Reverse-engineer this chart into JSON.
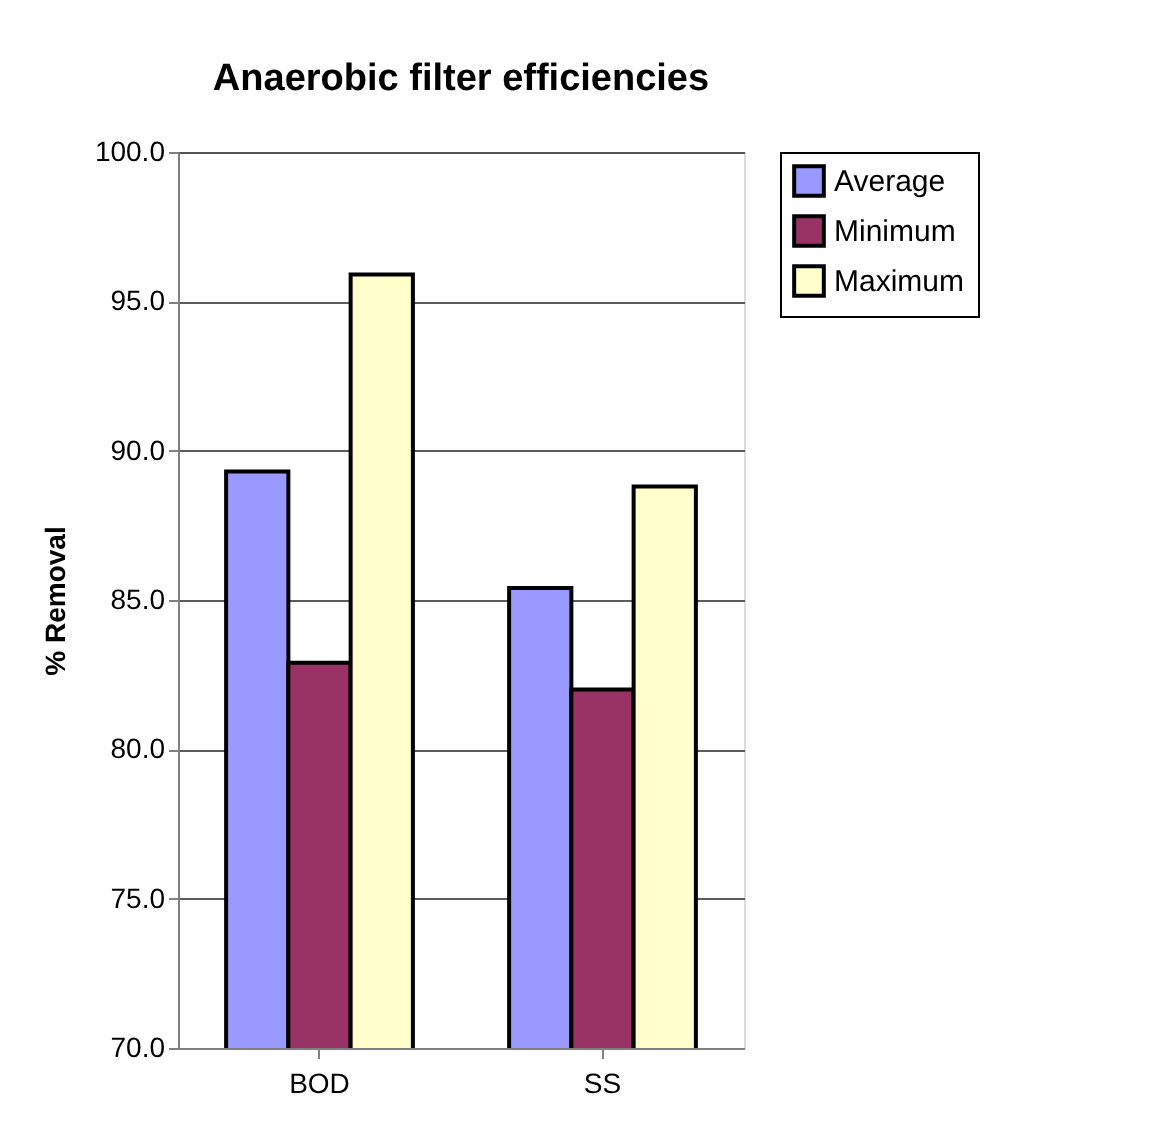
{
  "chart_data": {
    "type": "bar",
    "title": "Anaerobic filter efficiencies",
    "ylabel": "% Removal",
    "categories": [
      "BOD",
      "SS"
    ],
    "series": [
      {
        "name": "Average",
        "color": "#9999ff",
        "values": [
          89.3,
          85.4
        ]
      },
      {
        "name": "Minimum",
        "color": "#993366",
        "values": [
          82.9,
          82.0
        ]
      },
      {
        "name": "Maximum",
        "color": "#ffffcc",
        "values": [
          95.9,
          88.8
        ]
      }
    ],
    "ylim": [
      70,
      100
    ],
    "yticks": [
      {
        "value": 70,
        "label": "70.0"
      },
      {
        "value": 75,
        "label": "75.0"
      },
      {
        "value": 80,
        "label": "80.0"
      },
      {
        "value": 85,
        "label": "85.0"
      },
      {
        "value": 90,
        "label": "90.0"
      },
      {
        "value": 95,
        "label": "95.0"
      },
      {
        "value": 100,
        "label": "100.0"
      }
    ],
    "grid": "y",
    "legend": "right"
  }
}
